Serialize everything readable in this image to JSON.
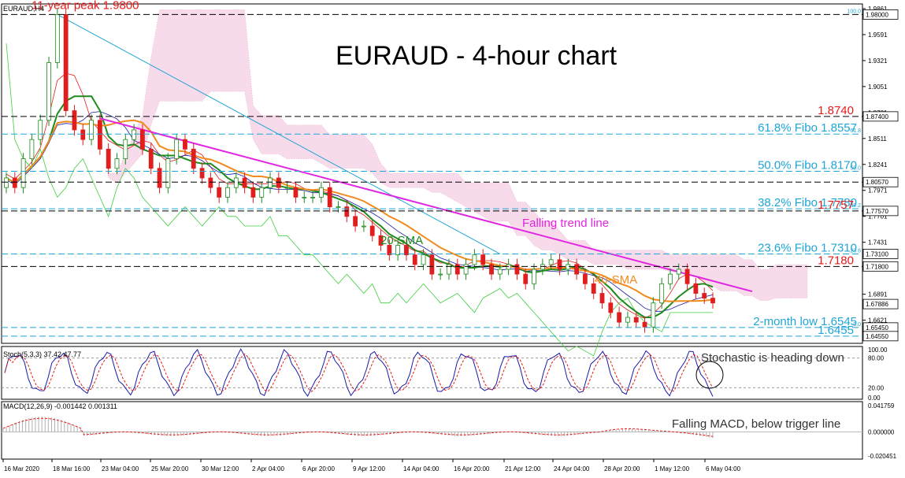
{
  "chart_data": [
    {
      "type": "candlestick",
      "symbol_label": "EURAUD,H4",
      "title": "EURAUD - 4-hour chart",
      "ylim": [
        1.638,
        1.991
      ],
      "x_tick_labels": [
        "16 Mar 2020",
        "18 Mar 16:00",
        "23 Mar 04:00",
        "25 Mar 20:00",
        "30 Mar 12:00",
        "2 Apr 04:00",
        "6 Apr 20:00",
        "9 Apr 12:00",
        "14 Apr 04:00",
        "16 Apr 20:00",
        "21 Apr 12:00",
        "24 Apr 04:00",
        "28 Apr 20:00",
        "1 May 12:00",
        "6 May 04:00"
      ],
      "y_tick_labels": [
        1.9861,
        1.9591,
        1.9321,
        1.9051,
        1.8781,
        1.8511,
        1.8241,
        1.7971,
        1.7701,
        1.7431,
        1.7161,
        1.6891,
        1.6621
      ],
      "price_labels": [
        {
          "text": "1.98000",
          "value": 1.98
        },
        {
          "text": "1.87400",
          "value": 1.874
        },
        {
          "text": "1.80570",
          "value": 1.8057
        },
        {
          "text": "1.77570",
          "value": 1.7757
        },
        {
          "text": "1.73100",
          "value": 1.731
        },
        {
          "text": "1.71800",
          "value": 1.718
        },
        {
          "text": "1.67886",
          "value": 1.67886
        },
        {
          "text": "1.65450",
          "value": 1.6545
        },
        {
          "text": "1.64550",
          "value": 1.6455
        }
      ],
      "levels": [
        {
          "value": 1.98,
          "label": "11-year peak 1.9800",
          "color": "#e51b1b",
          "fibo": "100.0"
        },
        {
          "value": 1.874,
          "label": "1.8740",
          "color": "#e51b1b"
        },
        {
          "value": 1.8557,
          "label": "61.8% Fibo 1.8557",
          "color": "#1fa5d6",
          "fibo": "61.8"
        },
        {
          "value": 1.817,
          "label": "50.0% Fibo 1.8170",
          "color": "#1fa5d6",
          "fibo": "50.0"
        },
        {
          "value": 1.8057,
          "label": "",
          "color": "#000000"
        },
        {
          "value": 1.778,
          "label": "38.2% Fibo 1.7780",
          "color": "#1fa5d6",
          "fibo": "38.2"
        },
        {
          "value": 1.7757,
          "label": "1.7757",
          "color": "#e51b1b"
        },
        {
          "value": 1.731,
          "label": "23.6% Fibo 1.7310",
          "color": "#1fa5d6",
          "fibo": "23.6"
        },
        {
          "value": 1.718,
          "label": "1.7180",
          "color": "#e51b1b"
        },
        {
          "value": 1.6545,
          "label": "2-month low 1.6545",
          "color": "#1fa5d6",
          "fibo": "0.0"
        },
        {
          "value": 1.6455,
          "label": "1.6455",
          "color": "#1fa5d6"
        }
      ],
      "annotations": {
        "trend_label": "Falling trend line",
        "sma20_label": "20-SMA",
        "sma40_label": "40-SMA"
      },
      "colors": {
        "trend": "#e026e0",
        "fibo": "#1fa5d6",
        "red_level": "#e51b1b",
        "sma20": "#1e8b1e",
        "sma40": "#f28b1f",
        "cloud": "#e38ab8",
        "candle_up": "#1c8a1c",
        "candle_down": "#e01e1e"
      },
      "close_series": [
        1.81,
        1.8,
        1.83,
        1.85,
        1.87,
        1.93,
        1.98,
        1.88,
        1.86,
        1.85,
        1.87,
        1.84,
        1.82,
        1.83,
        1.85,
        1.86,
        1.84,
        1.82,
        1.8,
        1.83,
        1.85,
        1.84,
        1.82,
        1.81,
        1.8,
        1.79,
        1.8,
        1.81,
        1.8,
        1.79,
        1.8,
        1.81,
        1.8,
        1.8,
        1.79,
        1.79,
        1.79,
        1.8,
        1.78,
        1.78,
        1.77,
        1.76,
        1.76,
        1.75,
        1.74,
        1.73,
        1.74,
        1.73,
        1.72,
        1.73,
        1.71,
        1.71,
        1.72,
        1.71,
        1.72,
        1.73,
        1.72,
        1.71,
        1.715,
        1.72,
        1.71,
        1.7,
        1.715,
        1.72,
        1.725,
        1.715,
        1.72,
        1.71,
        1.7,
        1.69,
        1.68,
        1.67,
        1.66,
        1.665,
        1.66,
        1.655,
        1.68,
        1.7,
        1.71,
        1.715,
        1.7,
        1.69,
        1.685,
        1.68
      ]
    },
    {
      "type": "line",
      "label": "Stoch(5,3,3) 37.42 47.77",
      "annotation": "Stochastic is heading down",
      "ylim": [
        0,
        100
      ],
      "y_tick_labels": [
        "100.00",
        "80.00",
        "20.00",
        "0.00"
      ],
      "colors": {
        "main": "#1a1aa8",
        "signal": "#e51b1b"
      }
    },
    {
      "type": "bar",
      "label": "MACD(12,26,9) -0.001442 0.001311",
      "annotation": "Falling MACD, below trigger line",
      "y_tick_labels": [
        "0.041759",
        "0.000000",
        "-0.020451"
      ],
      "colors": {
        "hist": "#b0b0b0",
        "signal": "#e51b1b"
      }
    }
  ]
}
